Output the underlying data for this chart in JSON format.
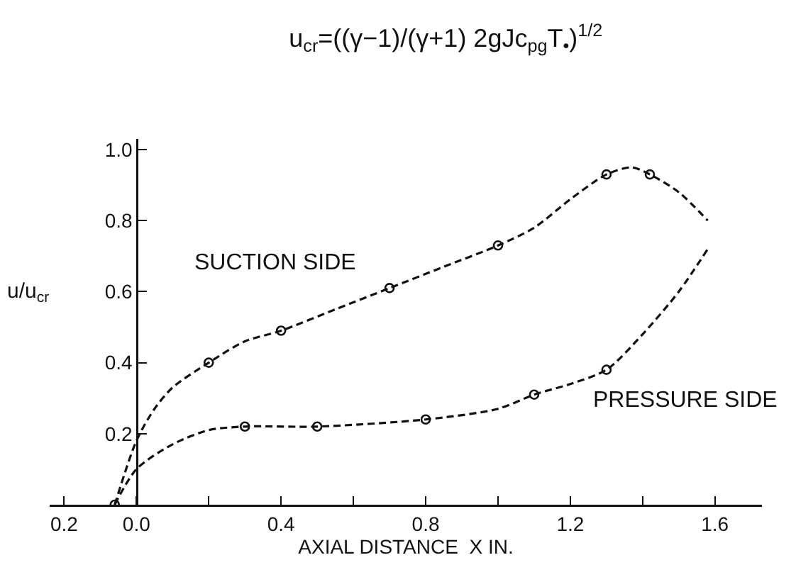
{
  "chart_data": {
    "type": "line",
    "title": "u$_{cr}$=((γ−1)/(γ+1) 2gJc$_{pg}$T$_{•}$)$^{1/2}$",
    "xlabel": "AXIAL DISTANCE  X IN.",
    "ylabel": "u/u$_{cr}$",
    "xlim": [
      -0.24,
      1.73
    ],
    "ylim": [
      0,
      1.03
    ],
    "xticks": [
      {
        "value": -0.2,
        "label": "0.2"
      },
      {
        "value": 0,
        "label": "0.0"
      },
      {
        "value": 0.2,
        "label": null
      },
      0.4,
      {
        "value": 0.6,
        "label": null
      },
      0.8,
      {
        "value": 1.0,
        "label": null
      },
      1.2,
      {
        "value": 1.4,
        "label": null
      },
      1.6
    ],
    "yticks": [
      0.2,
      0.4,
      0.6,
      0.8,
      {
        "value": 1.0,
        "label": "1.0"
      }
    ],
    "grid": false,
    "line_style": "dashed",
    "series": [
      {
        "color": "#111111",
        "x": [
          -0.06,
          0,
          0.05,
          0.1,
          0.2,
          0.3,
          0.4,
          0.55,
          0.7,
          0.85,
          1.0,
          1.1,
          1.2,
          1.3,
          1.37,
          1.42,
          1.5,
          1.58
        ],
        "values": [
          0,
          0.18,
          0.27,
          0.33,
          0.4,
          0.46,
          0.49,
          0.55,
          0.61,
          0.67,
          0.73,
          0.78,
          0.86,
          0.93,
          0.95,
          0.93,
          0.88,
          0.8
        ]
      },
      {
        "color": "#111111",
        "x": [
          -0.06,
          0,
          0.1,
          0.2,
          0.3,
          0.5,
          0.8,
          1.0,
          1.1,
          1.2,
          1.3,
          1.4,
          1.5,
          1.58
        ],
        "values": [
          0,
          0.1,
          0.17,
          0.21,
          0.22,
          0.22,
          0.24,
          0.27,
          0.31,
          0.34,
          0.38,
          0.48,
          0.6,
          0.72
        ]
      },
      {
        "type": "scatter",
        "marker": "circle",
        "color": "#111111",
        "x": [
          -0.06,
          0.2,
          0.4,
          0.7,
          1.0,
          1.3,
          1.42
        ],
        "values": [
          0,
          0.4,
          0.49,
          0.61,
          0.73,
          0.93,
          0.93
        ]
      },
      {
        "type": "scatter",
        "marker": "circle",
        "color": "#111111",
        "x": [
          0.3,
          0.5,
          0.8,
          1.1,
          1.3
        ],
        "values": [
          0.22,
          0.22,
          0.24,
          0.31,
          0.38
        ]
      }
    ],
    "annotations": [
      "SUCTION SIDE",
      "PRESSURE SIDE"
    ]
  }
}
